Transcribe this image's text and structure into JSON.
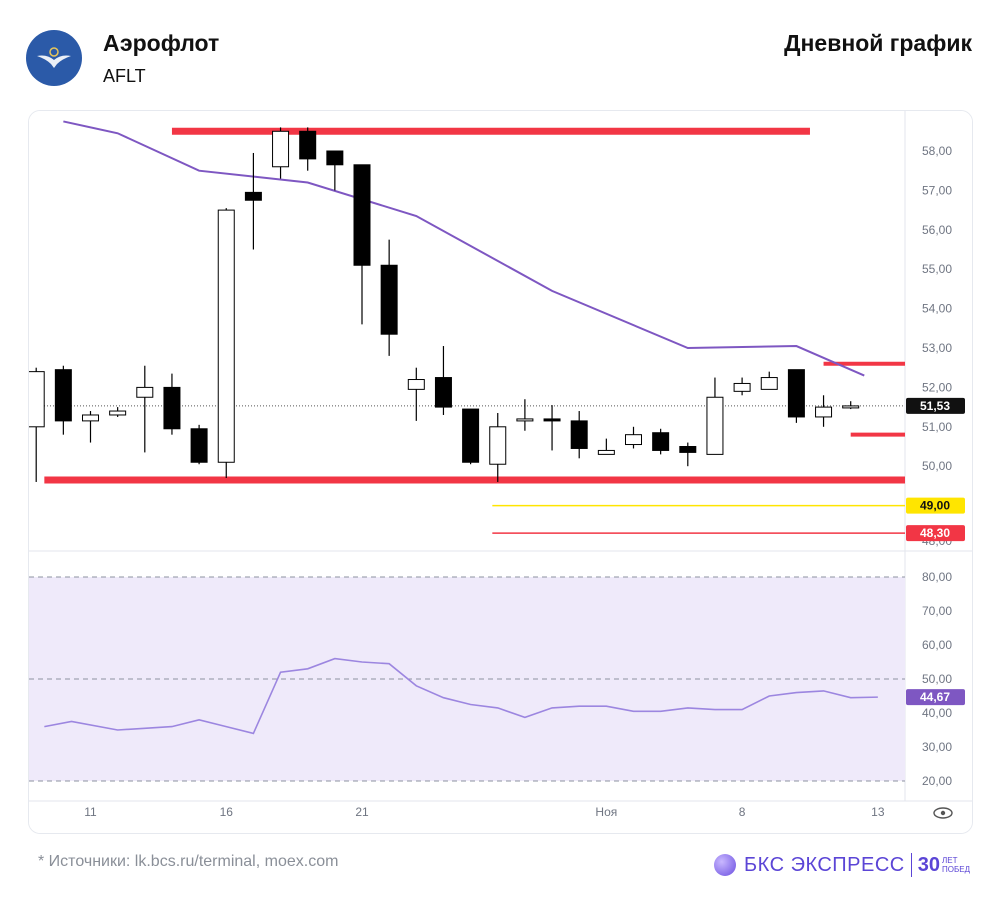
{
  "header": {
    "company": "Аэрофлот",
    "ticker": "AFLT",
    "chart_kind": "Дневной график"
  },
  "footer": {
    "source_note": "* Источники: lk.bcs.ru/terminal, moex.com",
    "brand_name": "БКС ЭКСПРЕСС",
    "brand_years": "30",
    "brand_sub_1": "ЛЕТ",
    "brand_sub_2": "ПОБЕД"
  },
  "colors": {
    "level_red": "#f23645",
    "level_yellow": "#ffe500",
    "ma_line": "#7e57c2",
    "rsi_line": "#9c86e0",
    "rsi_band": "#efeafa",
    "candle_bear": "#000000",
    "candle_bull": "#ffffff"
  },
  "chart_data": [
    {
      "type": "candlestick",
      "title": "",
      "ylim": [
        48,
        58.8
      ],
      "y_ticks": [
        "58,00",
        "57,00",
        "56,00",
        "55,00",
        "54,00",
        "53,00",
        "52,00",
        "51,00",
        "50,00",
        "48,00"
      ],
      "x_ticks": [
        {
          "label": "11",
          "day": 2
        },
        {
          "label": "16",
          "day": 7
        },
        {
          "label": "21",
          "day": 12
        },
        {
          "label": "Ноя",
          "day": 21
        },
        {
          "label": "8",
          "day": 26
        },
        {
          "label": "13",
          "day": 31
        }
      ],
      "candles": [
        {
          "o": 51.0,
          "h": 52.5,
          "l": 49.6,
          "c": 52.4
        },
        {
          "o": 52.45,
          "h": 52.55,
          "l": 50.8,
          "c": 51.15
        },
        {
          "o": 51.15,
          "h": 51.4,
          "l": 50.6,
          "c": 51.3
        },
        {
          "o": 51.3,
          "h": 51.5,
          "l": 51.25,
          "c": 51.4
        },
        {
          "o": 51.75,
          "h": 52.55,
          "l": 50.35,
          "c": 52.0
        },
        {
          "o": 52.0,
          "h": 52.35,
          "l": 50.8,
          "c": 50.95
        },
        {
          "o": 50.95,
          "h": 51.05,
          "l": 50.05,
          "c": 50.1
        },
        {
          "o": 50.1,
          "h": 56.55,
          "l": 49.7,
          "c": 56.5
        },
        {
          "o": 56.95,
          "h": 57.95,
          "l": 55.5,
          "c": 56.75
        },
        {
          "o": 57.6,
          "h": 58.6,
          "l": 57.3,
          "c": 58.5
        },
        {
          "o": 58.5,
          "h": 58.6,
          "l": 57.5,
          "c": 57.8
        },
        {
          "o": 58.0,
          "h": 58.0,
          "l": 57.0,
          "c": 57.65
        },
        {
          "o": 57.65,
          "h": 57.65,
          "l": 53.6,
          "c": 55.1
        },
        {
          "o": 55.1,
          "h": 55.75,
          "l": 52.8,
          "c": 53.35
        },
        {
          "o": 51.95,
          "h": 52.5,
          "l": 51.15,
          "c": 52.2
        },
        {
          "o": 52.25,
          "h": 53.05,
          "l": 51.3,
          "c": 51.5
        },
        {
          "o": 51.45,
          "h": 51.45,
          "l": 50.05,
          "c": 50.1
        },
        {
          "o": 50.05,
          "h": 51.35,
          "l": 49.6,
          "c": 51.0
        },
        {
          "o": 51.15,
          "h": 51.7,
          "l": 50.9,
          "c": 51.2
        },
        {
          "o": 51.2,
          "h": 51.55,
          "l": 50.4,
          "c": 51.15
        },
        {
          "o": 51.15,
          "h": 51.4,
          "l": 50.2,
          "c": 50.45
        },
        {
          "o": 50.3,
          "h": 50.7,
          "l": 50.3,
          "c": 50.4
        },
        {
          "o": 50.55,
          "h": 51.0,
          "l": 50.45,
          "c": 50.8
        },
        {
          "o": 50.85,
          "h": 50.95,
          "l": 50.3,
          "c": 50.4
        },
        {
          "o": 50.5,
          "h": 50.6,
          "l": 50.0,
          "c": 50.35
        },
        {
          "o": 50.3,
          "h": 52.25,
          "l": 50.3,
          "c": 51.75
        },
        {
          "o": 51.9,
          "h": 52.25,
          "l": 51.8,
          "c": 52.1
        },
        {
          "o": 51.95,
          "h": 52.4,
          "l": 51.95,
          "c": 52.25
        },
        {
          "o": 52.45,
          "h": 52.45,
          "l": 51.1,
          "c": 51.25
        },
        {
          "o": 51.25,
          "h": 51.8,
          "l": 51.0,
          "c": 51.5
        },
        {
          "o": 51.5,
          "h": 51.65,
          "l": 51.45,
          "c": 51.53
        }
      ],
      "moving_average": [
        {
          "day": 1,
          "value": 58.75
        },
        {
          "day": 3,
          "value": 58.45
        },
        {
          "day": 6,
          "value": 57.5
        },
        {
          "day": 10,
          "value": 57.2
        },
        {
          "day": 14,
          "value": 56.35
        },
        {
          "day": 19,
          "value": 54.45
        },
        {
          "day": 24,
          "value": 53.0
        },
        {
          "day": 28,
          "value": 53.05
        },
        {
          "day": 30.5,
          "value": 52.3
        }
      ],
      "levels": [
        {
          "value": 58.5,
          "color": "red",
          "from_day": 5,
          "to_day": 28.5,
          "style": "thick"
        },
        {
          "value": 49.65,
          "color": "red",
          "from_day": 0.3,
          "to_day": 32.8,
          "style": "thick"
        },
        {
          "value": 49.0,
          "color": "yellow",
          "from_day": 16.8,
          "to_day": 33,
          "style": "thin",
          "label": "49,00"
        },
        {
          "value": 48.3,
          "color": "red",
          "from_day": 16.8,
          "to_day": 33,
          "style": "thin",
          "label": "48,30"
        },
        {
          "value": 52.6,
          "color": "red",
          "from_day": 29,
          "to_day": 33,
          "style": "medium"
        },
        {
          "value": 50.8,
          "color": "red",
          "from_day": 30,
          "to_day": 33,
          "style": "medium"
        }
      ],
      "last_price": {
        "value": 51.53,
        "label": "51,53"
      }
    },
    {
      "type": "line",
      "title": "",
      "ylim": [
        15,
        90
      ],
      "y_ticks": [
        "80,00",
        "70,00",
        "60,00",
        "50,00",
        "40,00",
        "30,00",
        "20,00"
      ],
      "band": [
        20,
        80
      ],
      "dashed_levels": [
        80,
        50,
        20
      ],
      "x": [
        0.3,
        1.3,
        3,
        4,
        5,
        6,
        7,
        8,
        9,
        10,
        11,
        12,
        13,
        14,
        15,
        16,
        17,
        18,
        19,
        20,
        21,
        22,
        23,
        24,
        25,
        26,
        27,
        28,
        29,
        30,
        31
      ],
      "values": [
        36,
        37.5,
        35,
        35.5,
        36,
        38,
        36,
        34,
        52,
        53,
        56,
        55,
        54.5,
        48,
        44.5,
        42.5,
        41.5,
        38.7,
        41.5,
        42,
        42,
        40.5,
        40.5,
        41.5,
        41,
        41,
        45,
        46,
        46.5,
        44.5,
        44.67
      ],
      "last_value": {
        "value": 44.67,
        "label": "44,67"
      }
    }
  ]
}
